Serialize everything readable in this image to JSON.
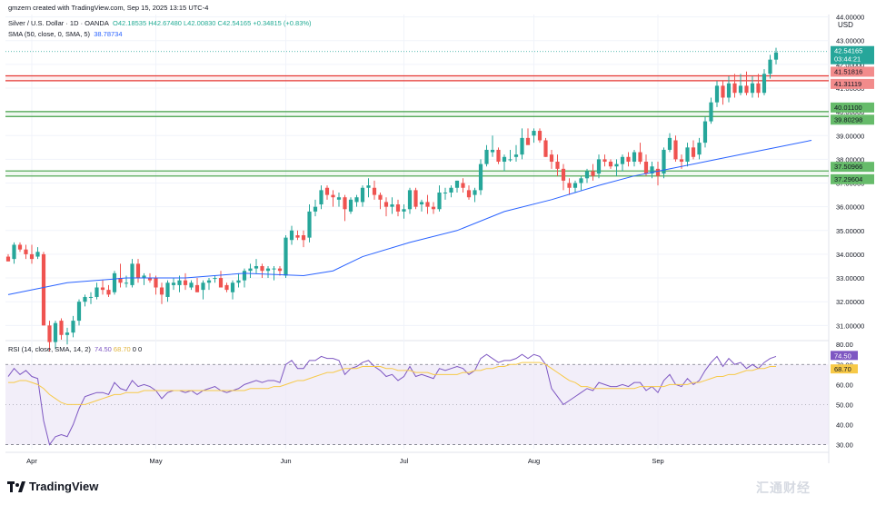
{
  "header": {
    "author_line": "gmzern created with TradingView.com, Sep 15, 2025 13:15 UTC-4",
    "symbol": "Silver / U.S. Dollar · 1D · OANDA",
    "ohlc": "O42.18535 H42.67480 L42.00830 C42.54165 +0.34815 (+0.83%)",
    "sma_label": "SMA (50, close, 0, SMA, 5)",
    "sma_value": "38.78734",
    "rsi_label": "RSI (14, close, SMA, 14, 2)",
    "rsi_value": "74.50",
    "rsi_ma_value": "68.70",
    "rsi_extra": "0  0"
  },
  "currency": "USD",
  "logo_text": "TradingView",
  "watermark": "汇通财经",
  "colors": {
    "up": "#26a69a",
    "down": "#ef5350",
    "sma": "#2962ff",
    "rsi": "#7e57c2",
    "rsi_ma": "#f7c948",
    "resistance": "#e53935",
    "support": "#43a047",
    "rsi_band": "#ede7f6"
  },
  "chart_data": [
    {
      "type": "candlestick",
      "series_name": "Silver / U.S. Dollar",
      "ylim": [
        30.4,
        44.1
      ],
      "y_ticks": [
        "31.00000",
        "32.00000",
        "33.00000",
        "34.00000",
        "35.00000",
        "36.00000",
        "37.00000",
        "38.00000",
        "39.00000",
        "40.00000",
        "41.00000",
        "42.00000",
        "43.00000",
        "44.00000"
      ],
      "x_labels": [
        "Apr",
        "May",
        "Jun",
        "Jul",
        "Aug",
        "Sep"
      ],
      "x_label_index": [
        4,
        25,
        47,
        67,
        89,
        110
      ],
      "last_price": "42.54165",
      "countdown": "03:44:21",
      "levels": [
        {
          "kind": "resistance",
          "values": [
            "41.51816",
            "41.31119"
          ],
          "range": [
            41.311,
            41.518
          ]
        },
        {
          "kind": "support",
          "values": [
            "40.01100",
            "39.80298"
          ],
          "range": [
            39.803,
            40.011
          ]
        },
        {
          "kind": "support",
          "values": [
            "37.50966",
            "37.29604"
          ],
          "range": [
            37.296,
            37.51
          ]
        }
      ],
      "candles": [
        [
          33.9,
          34.0,
          33.7,
          33.7
        ],
        [
          33.8,
          34.5,
          33.6,
          34.4
        ],
        [
          34.4,
          34.5,
          34.1,
          34.2
        ],
        [
          34.2,
          34.4,
          33.8,
          34.0
        ],
        [
          34.0,
          34.4,
          33.6,
          33.8
        ],
        [
          33.9,
          34.3,
          33.8,
          34.1
        ],
        [
          34.0,
          34.1,
          31.0,
          31.0
        ],
        [
          31.0,
          31.2,
          29.9,
          30.3
        ],
        [
          30.3,
          31.2,
          30.0,
          31.1
        ],
        [
          31.2,
          31.3,
          30.4,
          30.6
        ],
        [
          30.6,
          30.9,
          30.2,
          30.7
        ],
        [
          30.7,
          31.4,
          30.5,
          31.2
        ],
        [
          31.2,
          32.1,
          31.0,
          32.0
        ],
        [
          32.0,
          32.3,
          31.8,
          32.2
        ],
        [
          32.2,
          32.4,
          31.9,
          32.2
        ],
        [
          32.2,
          32.8,
          32.1,
          32.6
        ],
        [
          32.6,
          32.9,
          32.3,
          32.5
        ],
        [
          32.5,
          32.7,
          32.2,
          32.3
        ],
        [
          32.4,
          33.3,
          32.3,
          33.2
        ],
        [
          33.0,
          33.6,
          32.6,
          32.8
        ],
        [
          32.8,
          33.1,
          32.6,
          32.8
        ],
        [
          32.7,
          33.8,
          32.6,
          33.6
        ],
        [
          33.6,
          33.8,
          32.8,
          33.0
        ],
        [
          33.0,
          33.2,
          32.7,
          33.1
        ],
        [
          33.0,
          33.2,
          32.8,
          32.9
        ],
        [
          33.0,
          33.1,
          32.3,
          32.6
        ],
        [
          32.6,
          32.8,
          31.9,
          32.3
        ],
        [
          32.2,
          32.9,
          32.0,
          32.8
        ],
        [
          32.7,
          33.0,
          32.5,
          32.8
        ],
        [
          32.7,
          33.1,
          32.4,
          32.9
        ],
        [
          32.9,
          33.2,
          32.5,
          32.7
        ],
        [
          32.6,
          32.9,
          32.5,
          32.8
        ],
        [
          32.7,
          33.0,
          32.4,
          32.4
        ],
        [
          32.5,
          32.9,
          32.1,
          32.8
        ],
        [
          32.8,
          33.0,
          32.5,
          32.9
        ],
        [
          33.0,
          33.1,
          32.8,
          33.0
        ],
        [
          33.0,
          33.3,
          32.6,
          32.6
        ],
        [
          32.7,
          32.8,
          32.4,
          32.5
        ],
        [
          32.4,
          32.9,
          32.1,
          32.8
        ],
        [
          32.8,
          33.2,
          32.6,
          32.9
        ],
        [
          32.9,
          33.4,
          32.6,
          33.3
        ],
        [
          33.3,
          33.6,
          33.0,
          33.4
        ],
        [
          33.4,
          33.8,
          33.2,
          33.5
        ],
        [
          33.5,
          33.6,
          33.0,
          33.3
        ],
        [
          33.3,
          33.5,
          33.0,
          33.4
        ],
        [
          33.4,
          33.5,
          32.9,
          33.4
        ],
        [
          33.4,
          33.5,
          33.1,
          33.3
        ],
        [
          33.1,
          34.8,
          33.0,
          34.7
        ],
        [
          34.6,
          35.2,
          34.4,
          35.0
        ],
        [
          34.8,
          35.0,
          34.6,
          34.7
        ],
        [
          34.8,
          35.0,
          34.3,
          34.6
        ],
        [
          34.7,
          36.1,
          34.5,
          35.8
        ],
        [
          35.8,
          36.3,
          35.6,
          36.0
        ],
        [
          36.1,
          36.9,
          35.9,
          36.7
        ],
        [
          36.8,
          36.9,
          36.3,
          36.5
        ],
        [
          36.5,
          36.7,
          36.0,
          36.4
        ],
        [
          36.3,
          36.6,
          36.0,
          36.4
        ],
        [
          36.4,
          36.5,
          35.4,
          35.9
        ],
        [
          35.8,
          36.4,
          35.7,
          36.3
        ],
        [
          36.2,
          36.5,
          36.0,
          36.4
        ],
        [
          36.2,
          36.9,
          36.0,
          36.8
        ],
        [
          36.8,
          37.2,
          36.4,
          36.9
        ],
        [
          36.8,
          37.1,
          36.3,
          36.5
        ],
        [
          36.5,
          36.6,
          35.9,
          36.3
        ],
        [
          36.2,
          36.4,
          35.6,
          36.0
        ],
        [
          36.0,
          36.4,
          35.7,
          36.1
        ],
        [
          36.1,
          36.3,
          35.6,
          35.8
        ],
        [
          35.8,
          36.1,
          35.5,
          35.9
        ],
        [
          35.9,
          36.8,
          35.7,
          36.7
        ],
        [
          36.7,
          36.8,
          35.9,
          36.0
        ],
        [
          36.1,
          36.3,
          35.8,
          36.2
        ],
        [
          36.2,
          36.5,
          35.7,
          36.0
        ],
        [
          36.0,
          36.2,
          35.7,
          35.9
        ],
        [
          35.9,
          36.9,
          35.8,
          36.6
        ],
        [
          36.6,
          36.8,
          36.3,
          36.6
        ],
        [
          36.6,
          36.9,
          36.4,
          36.8
        ],
        [
          36.8,
          37.1,
          36.6,
          37.1
        ],
        [
          37.0,
          37.2,
          36.6,
          36.8
        ],
        [
          36.7,
          36.9,
          36.3,
          36.4
        ],
        [
          36.5,
          36.8,
          36.2,
          36.7
        ],
        [
          36.7,
          38.0,
          36.5,
          37.8
        ],
        [
          37.8,
          38.6,
          37.7,
          38.4
        ],
        [
          38.3,
          39.0,
          38.1,
          38.4
        ],
        [
          38.4,
          38.5,
          37.8,
          37.9
        ],
        [
          37.9,
          38.2,
          37.5,
          38.1
        ],
        [
          38.0,
          38.4,
          37.9,
          38.0
        ],
        [
          38.1,
          38.6,
          37.9,
          38.2
        ],
        [
          38.2,
          39.3,
          38.0,
          38.9
        ],
        [
          38.9,
          39.3,
          38.7,
          38.6
        ],
        [
          39.0,
          39.3,
          38.7,
          39.2
        ],
        [
          39.2,
          39.3,
          38.7,
          38.8
        ],
        [
          38.8,
          38.9,
          38.1,
          38.1
        ],
        [
          38.2,
          38.4,
          37.6,
          37.9
        ],
        [
          37.9,
          38.2,
          37.3,
          37.6
        ],
        [
          37.6,
          37.8,
          36.7,
          37.1
        ],
        [
          37.0,
          37.2,
          36.5,
          36.8
        ],
        [
          36.8,
          37.1,
          36.6,
          37.0
        ],
        [
          37.0,
          37.3,
          36.7,
          37.2
        ],
        [
          37.2,
          37.6,
          37.0,
          37.5
        ],
        [
          37.5,
          37.8,
          37.1,
          37.3
        ],
        [
          37.4,
          38.2,
          37.2,
          38.0
        ],
        [
          38.0,
          38.2,
          37.7,
          37.9
        ],
        [
          37.9,
          38.0,
          37.6,
          37.7
        ],
        [
          37.7,
          38.0,
          37.3,
          37.8
        ],
        [
          37.8,
          38.2,
          37.5,
          38.1
        ],
        [
          38.1,
          38.3,
          37.7,
          37.9
        ],
        [
          37.9,
          38.4,
          37.7,
          38.3
        ],
        [
          38.3,
          38.7,
          37.8,
          37.9
        ],
        [
          37.9,
          38.2,
          37.3,
          37.4
        ],
        [
          37.4,
          37.9,
          37.2,
          37.7
        ],
        [
          37.6,
          37.9,
          36.9,
          37.3
        ],
        [
          37.4,
          38.5,
          37.2,
          38.4
        ],
        [
          38.4,
          39.1,
          38.3,
          38.9
        ],
        [
          38.8,
          39.0,
          37.9,
          38.0
        ],
        [
          38.0,
          38.2,
          37.6,
          37.9
        ],
        [
          37.9,
          38.7,
          37.7,
          38.5
        ],
        [
          38.5,
          38.8,
          38.0,
          38.1
        ],
        [
          38.2,
          38.9,
          38.0,
          38.7
        ],
        [
          38.7,
          39.8,
          38.5,
          39.6
        ],
        [
          39.6,
          40.6,
          39.5,
          40.4
        ],
        [
          40.4,
          41.3,
          40.2,
          41.1
        ],
        [
          41.1,
          41.3,
          40.3,
          40.6
        ],
        [
          40.6,
          41.5,
          40.4,
          41.2
        ],
        [
          41.2,
          41.6,
          40.6,
          40.8
        ],
        [
          40.8,
          41.6,
          40.7,
          41.1
        ],
        [
          41.1,
          41.7,
          40.7,
          40.8
        ],
        [
          40.8,
          41.5,
          40.6,
          41.2
        ],
        [
          41.2,
          41.6,
          40.6,
          40.8
        ],
        [
          40.8,
          41.8,
          40.7,
          41.6
        ],
        [
          41.6,
          42.4,
          41.4,
          42.2
        ],
        [
          42.2,
          42.7,
          42.0,
          42.5
        ]
      ],
      "sma": [
        [
          0,
          32.3
        ],
        [
          10,
          32.8
        ],
        [
          20,
          33.0
        ],
        [
          30,
          33.0
        ],
        [
          40,
          33.2
        ],
        [
          50,
          33.1
        ],
        [
          55,
          33.3
        ],
        [
          60,
          33.9
        ],
        [
          68,
          34.5
        ],
        [
          76,
          35.0
        ],
        [
          84,
          35.8
        ],
        [
          92,
          36.3
        ],
        [
          100,
          36.9
        ],
        [
          106,
          37.3
        ],
        [
          112,
          37.6
        ],
        [
          118,
          37.9
        ],
        [
          124,
          38.2
        ],
        [
          130,
          38.5
        ],
        [
          136,
          38.8
        ]
      ]
    },
    {
      "type": "line",
      "series_name": "RSI",
      "ylim": [
        28,
        81
      ],
      "y_ticks": [
        "30.00",
        "40.00",
        "50.00",
        "60.00",
        "70.00",
        "80.00"
      ],
      "bands": [
        30,
        70
      ],
      "rsi_value": "74.50",
      "rsi_ma_value": "68.70",
      "rsi": [
        64,
        68,
        65,
        67,
        64,
        63,
        42,
        30,
        34,
        35,
        34,
        40,
        48,
        54,
        55,
        56,
        56,
        55,
        61,
        58,
        57,
        62,
        59,
        60,
        59,
        57,
        53,
        56,
        57,
        57,
        56,
        57,
        55,
        57,
        58,
        59,
        57,
        56,
        57,
        58,
        60,
        61,
        62,
        61,
        62,
        62,
        61,
        70,
        72,
        68,
        68,
        72,
        72,
        74,
        73,
        73,
        72,
        65,
        68,
        69,
        71,
        72,
        69,
        67,
        64,
        65,
        62,
        64,
        69,
        64,
        65,
        64,
        63,
        68,
        67,
        68,
        69,
        68,
        65,
        67,
        73,
        75,
        73,
        71,
        72,
        72,
        73,
        75,
        73,
        75,
        74,
        70,
        58,
        54,
        50,
        52,
        54,
        56,
        58,
        57,
        61,
        60,
        59,
        59,
        60,
        59,
        61,
        61,
        57,
        59,
        56,
        62,
        65,
        60,
        59,
        63,
        60,
        62,
        67,
        71,
        74,
        69,
        73,
        70,
        71,
        68,
        70,
        68,
        71,
        73,
        74
      ],
      "rsi_ma": [
        61,
        61,
        62,
        62,
        61,
        60,
        58,
        55,
        53,
        51,
        50,
        50,
        50,
        50,
        51,
        52,
        53,
        54,
        55,
        55,
        56,
        56,
        56,
        57,
        57,
        57,
        57,
        57,
        57,
        57,
        57,
        57,
        57,
        57,
        57,
        57,
        57,
        57,
        57,
        57,
        57,
        58,
        58,
        58,
        58,
        59,
        59,
        60,
        61,
        62,
        62,
        63,
        64,
        65,
        66,
        66,
        67,
        68,
        68,
        68,
        69,
        69,
        69,
        69,
        68,
        68,
        67,
        67,
        67,
        66,
        66,
        66,
        65,
        65,
        65,
        65,
        65,
        66,
        66,
        67,
        67,
        68,
        68,
        69,
        69,
        70,
        70,
        71,
        71,
        71,
        71,
        70,
        68,
        66,
        64,
        62,
        61,
        59,
        59,
        58,
        58,
        58,
        58,
        58,
        58,
        58,
        58,
        59,
        59,
        59,
        59,
        59,
        60,
        60,
        60,
        60,
        61,
        61,
        62,
        63,
        64,
        64,
        65,
        65,
        66,
        67,
        67,
        68,
        68,
        69,
        69
      ]
    }
  ]
}
